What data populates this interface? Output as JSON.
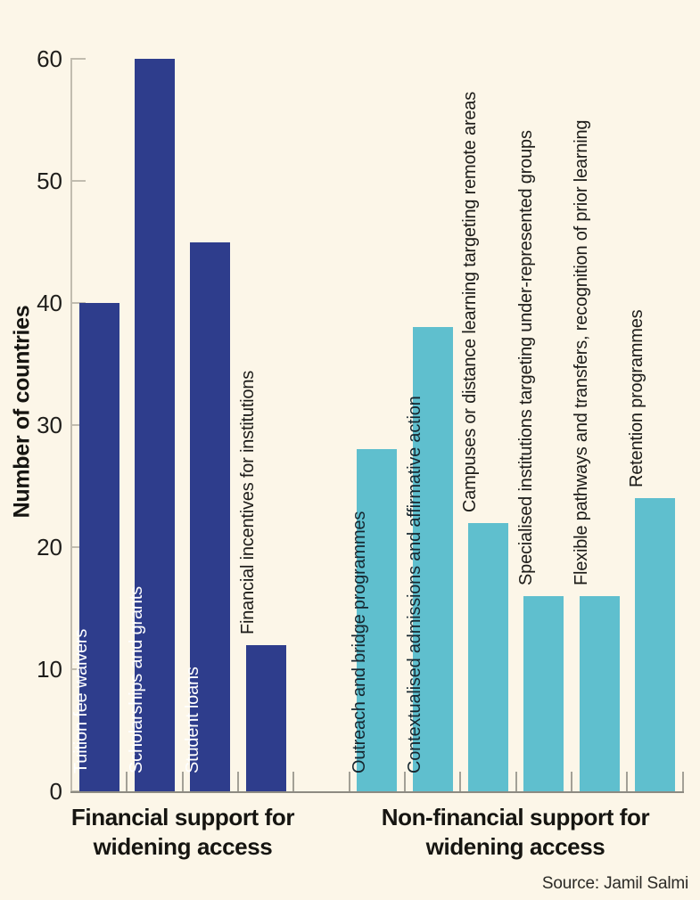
{
  "ylabel": "Number of countries",
  "source": "Source: Jamil Salmi",
  "background_color": "#FCF6E8",
  "group_labels": [
    {
      "line1": "Financial support for",
      "line2": "widening access"
    },
    {
      "line1": "Non-financial support for",
      "line2": "widening access"
    }
  ],
  "chart_data": {
    "type": "bar",
    "title": "",
    "xlabel": "",
    "ylabel": "Number of countries",
    "ylim": [
      0,
      60
    ],
    "yticks": [
      0,
      10,
      20,
      30,
      40,
      50,
      60
    ],
    "grid": false,
    "legend": "none",
    "groups": [
      {
        "name": "Financial support for widening access",
        "color": "#2E3D8C",
        "bars": [
          {
            "label": "Tuition fee waivers",
            "value": 40,
            "label_placement": "inside",
            "label_color": "#FFFFFF"
          },
          {
            "label": "Scholarships and grants",
            "value": 60,
            "label_placement": "inside",
            "label_color": "#FFFFFF"
          },
          {
            "label": "Student loans",
            "value": 45,
            "label_placement": "inside",
            "label_color": "#FFFFFF"
          },
          {
            "label": "Financial incentives for institutions",
            "value": 12,
            "label_placement": "above",
            "label_color": "#1C1B18"
          }
        ]
      },
      {
        "name": "Non-financial support for widening access",
        "color": "#5FBFCE",
        "bars": [
          {
            "label": "Outreach and bridge programmes",
            "value": 28,
            "label_placement": "inside",
            "label_color": "#16262F"
          },
          {
            "label": "Contextualised admissions and affirmative action",
            "value": 38,
            "label_placement": "inside",
            "label_color": "#16262F"
          },
          {
            "label": "Campuses or distance learning targeting remote areas",
            "value": 22,
            "label_placement": "above",
            "label_color": "#1C1B18"
          },
          {
            "label": "Specialised institutions targeting under-represented groups",
            "value": 16,
            "label_placement": "above",
            "label_color": "#1C1B18"
          },
          {
            "label": "Flexible pathways and transfers, recognition of prior learning",
            "value": 16,
            "label_placement": "above",
            "label_color": "#1C1B18"
          },
          {
            "label": "Retention programmes",
            "value": 24,
            "label_placement": "above",
            "label_color": "#1C1B18"
          }
        ]
      }
    ]
  }
}
